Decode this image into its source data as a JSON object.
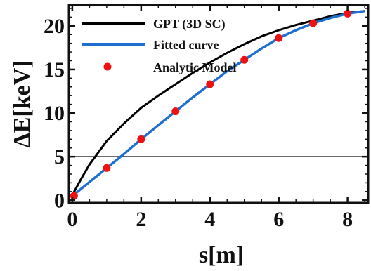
{
  "chart_data": {
    "type": "line",
    "xlabel": "s[m]",
    "ylabel": "ΔE[keV]",
    "xlim": [
      -0.1,
      8.6
    ],
    "ylim": [
      -0.3,
      22.4
    ],
    "xticks": [
      0,
      2,
      4,
      6,
      8
    ],
    "yticks": [
      0,
      5,
      10,
      15,
      20
    ],
    "reference_line": {
      "y": 5,
      "color": "#111111"
    },
    "legend_placement": "top",
    "series": [
      {
        "name": "GPT (3D SC)",
        "kind": "line",
        "color": "#000000",
        "x": [
          0,
          0.25,
          0.5,
          1,
          1.5,
          2,
          2.5,
          3,
          3.5,
          4,
          4.5,
          5,
          5.5,
          6,
          6.5,
          7,
          7.5,
          8,
          8.5
        ],
        "y": [
          0.6,
          2.4,
          4.1,
          6.8,
          8.8,
          10.6,
          12.0,
          13.3,
          14.6,
          15.8,
          16.9,
          17.9,
          18.8,
          19.5,
          20.1,
          20.6,
          21.1,
          21.5,
          21.7
        ]
      },
      {
        "name": "Fitted curve",
        "kind": "line",
        "color": "#1f6fd0",
        "x": [
          0,
          0.5,
          1,
          1.5,
          2,
          2.5,
          3,
          3.5,
          4,
          4.5,
          5,
          5.5,
          6,
          6.5,
          7,
          7.5,
          8,
          8.5
        ],
        "y": [
          0.5,
          2.1,
          3.7,
          5.3,
          7.0,
          8.6,
          10.2,
          11.8,
          13.3,
          14.8,
          16.1,
          17.4,
          18.6,
          19.5,
          20.3,
          20.9,
          21.4,
          21.7
        ]
      },
      {
        "name": "Analytic Model",
        "kind": "scatter",
        "color": "#ee1111",
        "x": [
          0.05,
          1,
          2,
          3,
          4,
          5,
          6,
          7,
          8
        ],
        "y": [
          0.5,
          3.7,
          7.0,
          10.2,
          13.3,
          16.1,
          18.6,
          20.3,
          21.4
        ]
      }
    ]
  }
}
